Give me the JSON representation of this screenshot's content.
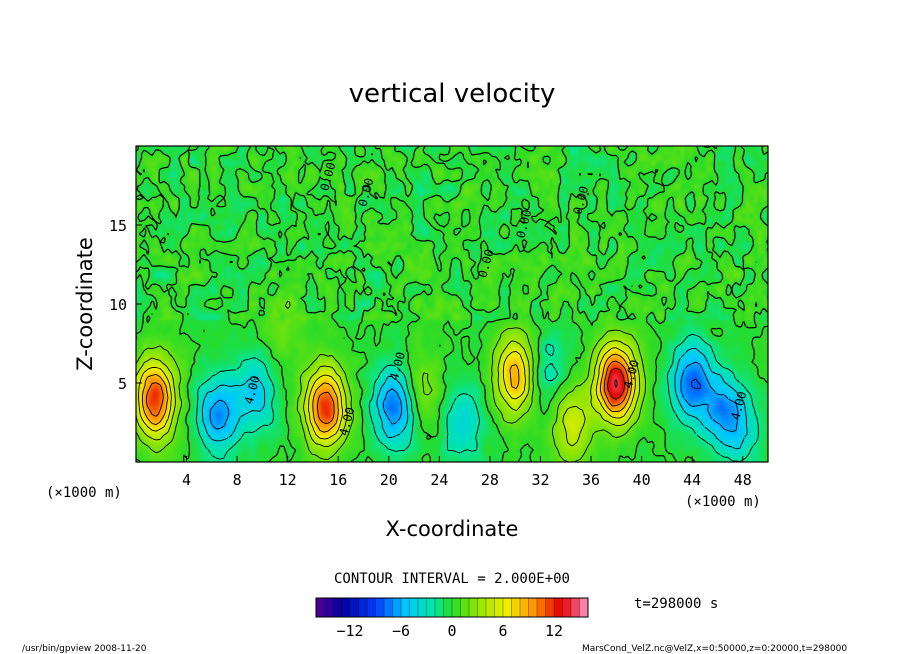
{
  "chart_data": {
    "type": "heatmap",
    "title": "vertical velocity",
    "xlabel": "X-coordinate",
    "ylabel": "Z-coordinate",
    "x_unit": "(×1000 m)",
    "y_unit": "(×1000 m)",
    "xlim": [
      0,
      50
    ],
    "ylim": [
      0,
      20
    ],
    "x_ticks": [
      4,
      8,
      12,
      16,
      20,
      24,
      28,
      32,
      36,
      40,
      44,
      48
    ],
    "y_ticks": [
      5,
      10,
      15
    ],
    "contour_interval_text": "CONTOUR INTERVAL = 2.000E+00",
    "contour_interval": 2.0,
    "contour_labels": [
      "0.00",
      "0.00",
      "0.00",
      "0.00",
      "0.00",
      "4.00",
      "4.00",
      "4.00",
      "4.00",
      "4.00"
    ],
    "time_label": "t=298000 s",
    "colorbar": {
      "range": [
        -16,
        16
      ],
      "ticks": [
        -12,
        -6,
        0,
        6,
        12
      ],
      "tick_labels": [
        "−12",
        "−6",
        "0",
        "6",
        "12"
      ]
    },
    "features": [
      {
        "x": 1.5,
        "z": 4.0,
        "value": 12
      },
      {
        "x": 6.5,
        "z": 3.0,
        "value": -7
      },
      {
        "x": 9.5,
        "z": 4.3,
        "value": -5
      },
      {
        "x": 11.5,
        "z": 8.5,
        "value": 2
      },
      {
        "x": 15.0,
        "z": 3.5,
        "value": 12
      },
      {
        "x": 20.5,
        "z": 3.5,
        "value": -8
      },
      {
        "x": 22.5,
        "z": 4.5,
        "value": 3
      },
      {
        "x": 25.8,
        "z": 2.5,
        "value": -4
      },
      {
        "x": 30.0,
        "z": 5.5,
        "value": 9
      },
      {
        "x": 32.5,
        "z": 5.8,
        "value": -3
      },
      {
        "x": 34.5,
        "z": 2.3,
        "value": 5
      },
      {
        "x": 38.0,
        "z": 5.0,
        "value": 14
      },
      {
        "x": 44.0,
        "z": 5.0,
        "value": -8
      },
      {
        "x": 46.5,
        "z": 3.2,
        "value": -6
      },
      {
        "x": 48.0,
        "z": 2.0,
        "value": -3
      }
    ]
  },
  "footer": {
    "left": "/usr/bin/gpview   2008-11-20",
    "right": "MarsCond_VelZ.nc@VelZ,x=0:50000,z=0:20000,t=298000"
  },
  "colors": {
    "background_field": "#22dd22",
    "positive_max": "#cc0000",
    "negative_max": "#0000aa"
  }
}
